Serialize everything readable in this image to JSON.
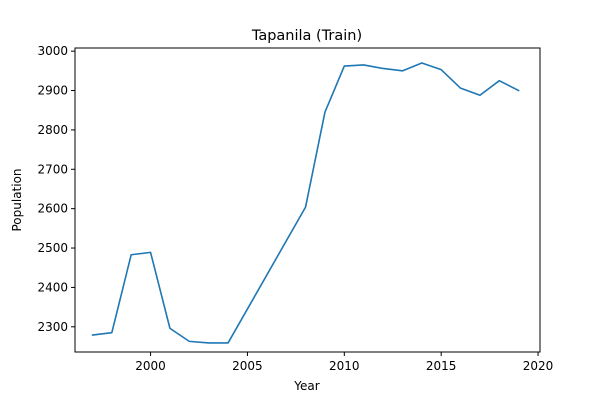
{
  "chart_data": {
    "type": "line",
    "title": "Tapanila (Train)",
    "xlabel": "Year",
    "ylabel": "Population",
    "xlim": [
      1996.1,
      2020.1
    ],
    "ylim": [
      2236,
      3008
    ],
    "x_ticks": [
      2000,
      2005,
      2010,
      2015,
      2020
    ],
    "y_ticks": [
      2300,
      2400,
      2500,
      2600,
      2700,
      2800,
      2900,
      3000
    ],
    "grid": false,
    "legend": "none",
    "colors": {
      "line": "#1f77b4",
      "axes": "#000000",
      "background": "#ffffff"
    },
    "series": [
      {
        "x": [
          1997,
          1998,
          1999,
          2000,
          2001,
          2002,
          2003,
          2004,
          2008,
          2009,
          2010,
          2011,
          2012,
          2013,
          2014,
          2015,
          2016,
          2017,
          2018,
          2019
        ],
        "values": [
          2279,
          2285,
          2483,
          2489,
          2296,
          2263,
          2259,
          2259,
          2604,
          2845,
          2962,
          2965,
          2956,
          2950,
          2970,
          2953,
          2906,
          2888,
          2925,
          2900
        ]
      }
    ]
  }
}
